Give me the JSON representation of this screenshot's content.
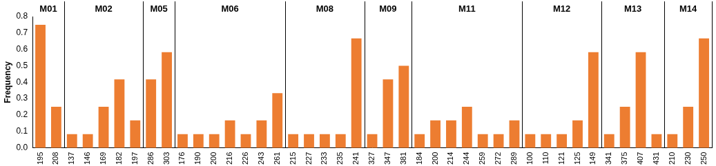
{
  "chart_data": {
    "type": "bar",
    "y_label": "Frequency",
    "color": "#ed7d31",
    "grid": false,
    "ylim": [
      0,
      0.8
    ],
    "yticks": [
      {
        "value": 0,
        "label": "0.0"
      },
      0.1,
      0.2,
      0.3,
      0.4,
      0.5,
      0.6,
      0.7,
      0.8
    ],
    "groups": [
      {
        "name": "M01",
        "categories": [
          "195",
          "208"
        ],
        "values": [
          0.75,
          0.25
        ]
      },
      {
        "name": "M02",
        "categories": [
          "137",
          "146",
          "169",
          "182",
          "197"
        ],
        "values": [
          0.083,
          0.083,
          0.25,
          0.417,
          0.167
        ]
      },
      {
        "name": "M05",
        "categories": [
          "286",
          "303"
        ],
        "values": [
          0.417,
          0.583
        ]
      },
      {
        "name": "M06",
        "categories": [
          "176",
          "190",
          "200",
          "216",
          "226",
          "243",
          "261"
        ],
        "values": [
          0.083,
          0.083,
          0.083,
          0.167,
          0.083,
          0.167,
          0.333
        ]
      },
      {
        "name": "M08",
        "categories": [
          "215",
          "227",
          "233",
          "235",
          "241"
        ],
        "values": [
          0.083,
          0.083,
          0.083,
          0.083,
          0.667
        ]
      },
      {
        "name": "M09",
        "categories": [
          "327",
          "347",
          "381"
        ],
        "values": [
          0.083,
          0.417,
          0.5
        ]
      },
      {
        "name": "M11",
        "categories": [
          "184",
          "200",
          "214",
          "244",
          "259",
          "272",
          "289"
        ],
        "values": [
          0.083,
          0.167,
          0.167,
          0.25,
          0.083,
          0.083,
          0.167
        ]
      },
      {
        "name": "M12",
        "categories": [
          "100",
          "110",
          "121",
          "125",
          "149"
        ],
        "values": [
          0.083,
          0.083,
          0.083,
          0.167,
          0.583
        ]
      },
      {
        "name": "M13",
        "categories": [
          "341",
          "375",
          "407",
          "431"
        ],
        "values": [
          0.083,
          0.25,
          0.583,
          0.083
        ]
      },
      {
        "name": "M14",
        "categories": [
          "210",
          "230",
          "250"
        ],
        "values": [
          0.083,
          0.25,
          0.667
        ]
      }
    ]
  }
}
